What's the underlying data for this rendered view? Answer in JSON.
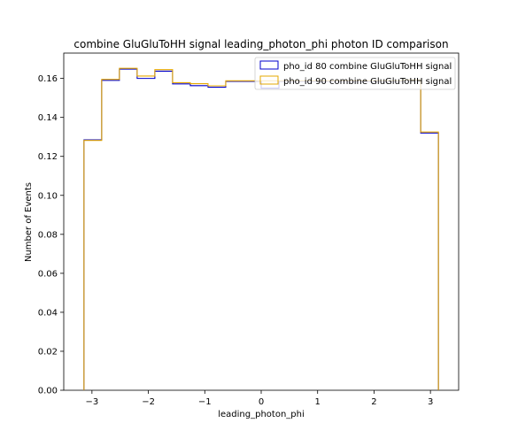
{
  "chart_data": {
    "type": "histogram-step",
    "title": "combine GluGluToHH signal leading_photon_phi photon ID comparison",
    "xlabel": "leading_photon_phi",
    "ylabel": "Number of Events",
    "xlim": [
      -3.5,
      3.5
    ],
    "ylim": [
      0,
      0.173
    ],
    "xticks": [
      -3,
      -2,
      -1,
      0,
      1,
      2,
      3
    ],
    "xtick_labels": [
      "−3",
      "−2",
      "−1",
      "0",
      "1",
      "2",
      "3"
    ],
    "yticks": [
      0,
      0.02,
      0.04,
      0.06,
      0.08,
      0.1,
      0.12,
      0.14,
      0.16
    ],
    "ytick_labels": [
      "0.00",
      "0.02",
      "0.04",
      "0.06",
      "0.08",
      "0.10",
      "0.12",
      "0.14",
      "0.16"
    ],
    "bin_edges": [
      -3.1416,
      -2.8274,
      -2.5133,
      -2.1991,
      -1.885,
      -1.5708,
      -1.2566,
      -0.9425,
      -0.6283,
      -0.3142,
      0.0,
      0.3142,
      0.6283,
      0.9425,
      1.2566,
      1.5708,
      1.885,
      2.1991,
      2.5133,
      2.8274,
      3.1416
    ],
    "series": [
      {
        "name": "pho_id 80 combine GluGluToHH signal",
        "color": "#0000cc",
        "values": [
          0.1285,
          0.159,
          0.1648,
          0.16,
          0.1637,
          0.1572,
          0.1563,
          0.1555,
          0.1585,
          0.1585,
          0.155,
          0.1585,
          0.1585,
          0.1585,
          0.1585,
          0.1585,
          0.1585,
          0.1585,
          0.159,
          0.132
        ]
      },
      {
        "name": "pho_id 90 combine GluGluToHH signal",
        "color": "#e6a800",
        "values": [
          0.1282,
          0.1595,
          0.1652,
          0.1612,
          0.1645,
          0.1578,
          0.1573,
          0.1562,
          0.1588,
          0.1588,
          0.1588,
          0.1588,
          0.1588,
          0.1588,
          0.1588,
          0.1588,
          0.1588,
          0.1588,
          0.1592,
          0.1325
        ]
      }
    ],
    "legend_position": "top-right",
    "grid": false
  }
}
